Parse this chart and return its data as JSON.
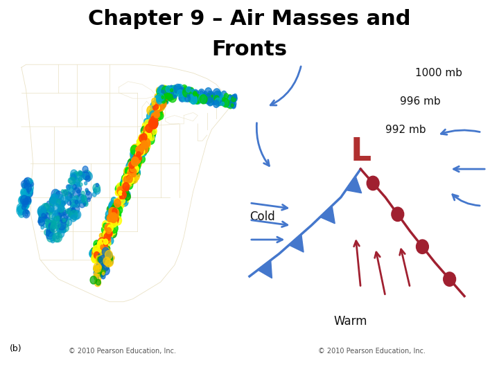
{
  "title_line1": "Chapter 9 – Air Masses and",
  "title_line2": "Fronts",
  "title_fontsize": 22,
  "title_fontweight": "bold",
  "bg_color": "#ffffff",
  "left_panel_bg": "#000000",
  "right_panel_bg": "#dfc8b0",
  "label_b": "(b)",
  "copyright_left": "© 2010 Pearson Education, Inc.",
  "copyright_right": "© 2010 Pearson Education, Inc.",
  "isobar_labels": [
    "1000 mb",
    "996 mb",
    "992 mb"
  ],
  "isobar_color": "#ffffff",
  "L_color": "#b03030",
  "cold_label": "Cold",
  "warm_label": "Warm",
  "cold_front_color": "#3366cc",
  "warm_front_color": "#a02030",
  "arrow_color": "#4477cc",
  "text_color": "#111111",
  "state_line_color": "#e8dfc0",
  "precip_seed": 42,
  "copyright_fontsize": 7,
  "label_b_fontsize": 9
}
